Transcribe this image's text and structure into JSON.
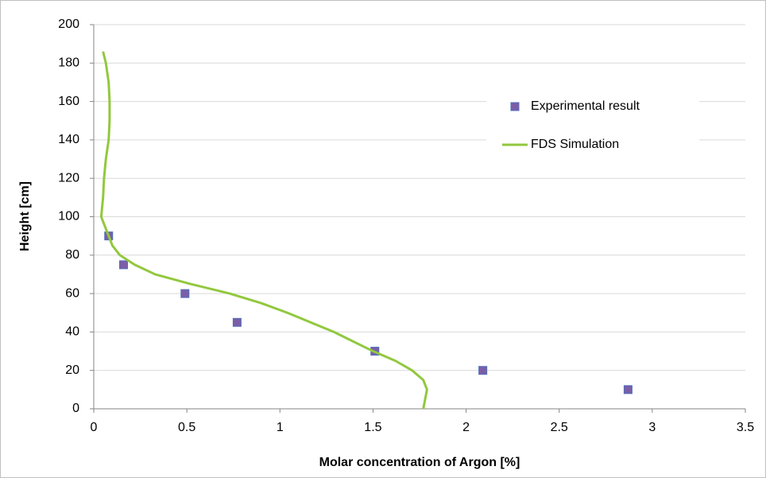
{
  "chart_data": {
    "type": "scatter",
    "xlabel": "Molar concentration of Argon [%]",
    "ylabel": "Height [cm]",
    "xlim": [
      0,
      3.5
    ],
    "xticks": [
      0,
      0.5,
      1,
      1.5,
      2,
      2.5,
      3,
      3.5
    ],
    "ylim": [
      0,
      200
    ],
    "yticks": [
      0,
      20,
      40,
      60,
      80,
      100,
      120,
      140,
      160,
      180,
      200
    ],
    "grid": true,
    "legend": "upper right",
    "series": [
      {
        "name": "Experimental result",
        "style": "markers",
        "color": "#7b5ea7",
        "x": [
          0.08,
          0.16,
          0.49,
          0.77,
          1.51,
          2.09,
          2.87
        ],
        "values": [
          90,
          75,
          60,
          45,
          30,
          20,
          10
        ]
      },
      {
        "name": "FDS Simulation",
        "style": "line",
        "color": "#92c83e",
        "x": [
          1.77,
          1.78,
          1.79,
          1.77,
          1.71,
          1.62,
          1.5,
          1.29,
          1.04,
          0.9,
          0.73,
          0.52,
          0.33,
          0.22,
          0.14,
          0.1,
          0.08,
          0.06,
          0.04,
          0.05,
          0.055,
          0.065,
          0.08,
          0.085,
          0.085,
          0.08,
          0.065,
          0.05
        ],
        "values": [
          0,
          5,
          10,
          15,
          20,
          25,
          30,
          40,
          50,
          55,
          60,
          65,
          70,
          75,
          80,
          85,
          90,
          95,
          100,
          110,
          120,
          130,
          140,
          150,
          160,
          170,
          180,
          186
        ]
      }
    ]
  }
}
